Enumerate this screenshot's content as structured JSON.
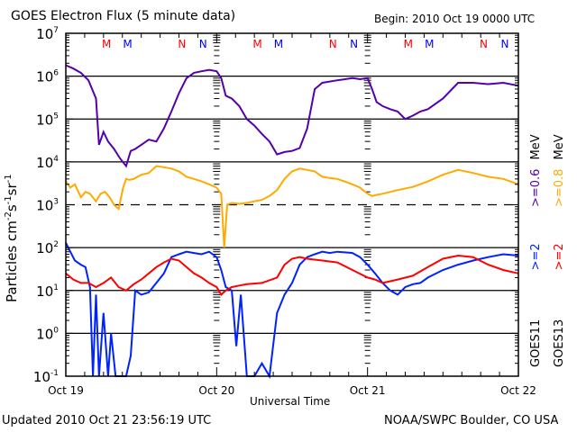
{
  "chart_data": {
    "type": "line",
    "title": "GOES Electron Flux (5 minute data)",
    "begin_label": "Begin: 2010 Oct 19 0000 UTC",
    "xlabel": "Universal Time",
    "ylabel_main": "Particles cm",
    "ylabel_sup1": "-2",
    "ylabel_s": "s",
    "ylabel_sup2": "-1",
    "ylabel_sr": "sr",
    "ylabel_sup3": "-1",
    "yscale": "log",
    "ylim": [
      0.1,
      10000000
    ],
    "y_ticks": [
      {
        "base": "10",
        "exp": "7",
        "value": 10000000
      },
      {
        "base": "10",
        "exp": "6",
        "value": 1000000
      },
      {
        "base": "10",
        "exp": "5",
        "value": 100000
      },
      {
        "base": "10",
        "exp": "4",
        "value": 10000
      },
      {
        "base": "10",
        "exp": "3",
        "value": 1000
      },
      {
        "base": "10",
        "exp": "2",
        "value": 100
      },
      {
        "base": "10",
        "exp": "1",
        "value": 10
      },
      {
        "base": "10",
        "exp": "0",
        "value": 1
      },
      {
        "base": "10",
        "exp": "-1",
        "value": 0.1
      }
    ],
    "x_unit": "days since Oct 19 0000 UTC",
    "xlim": [
      0,
      3
    ],
    "x_ticks": [
      {
        "label": "Oct 19",
        "value": 0
      },
      {
        "label": "Oct 20",
        "value": 1
      },
      {
        "label": "Oct 21",
        "value": 2
      },
      {
        "label": "Oct 22",
        "value": 3
      }
    ],
    "dashed_gridline_value": 1000,
    "solid_gridline_values": [
      1000000,
      100000,
      10000,
      100,
      10,
      1
    ],
    "midnight_noon_markers": [
      {
        "label": "M",
        "x": 0.27,
        "color": "#ff0000"
      },
      {
        "label": "M",
        "x": 0.41,
        "color": "#0000ff"
      },
      {
        "label": "N",
        "x": 0.77,
        "color": "#ff0000"
      },
      {
        "label": "N",
        "x": 0.91,
        "color": "#0000ff"
      },
      {
        "label": "M",
        "x": 1.27,
        "color": "#ff0000"
      },
      {
        "label": "M",
        "x": 1.41,
        "color": "#0000ff"
      },
      {
        "label": "N",
        "x": 1.77,
        "color": "#ff0000"
      },
      {
        "label": "N",
        "x": 1.91,
        "color": "#0000ff"
      },
      {
        "label": "M",
        "x": 2.27,
        "color": "#ff0000"
      },
      {
        "label": "M",
        "x": 2.41,
        "color": "#0000ff"
      },
      {
        "label": "N",
        "x": 2.77,
        "color": "#ff0000"
      },
      {
        "label": "N",
        "x": 2.91,
        "color": "#0000ff"
      }
    ],
    "legend": {
      "placement": "right",
      "sat_a": "GOES11",
      "sat_b": "GOES13",
      "e1_a": ">=2",
      "e1_b": ">=2",
      "e2_a": ">=0.6",
      "e2_b": ">=0.8",
      "unit_a": "MeV",
      "unit_b": "MeV"
    },
    "series": [
      {
        "name": "GOES11 >=0.6 MeV",
        "color": "#5500aa",
        "x": [
          0,
          0.05,
          0.1,
          0.15,
          0.2,
          0.22,
          0.25,
          0.28,
          0.32,
          0.36,
          0.4,
          0.43,
          0.46,
          0.5,
          0.55,
          0.6,
          0.65,
          0.7,
          0.75,
          0.8,
          0.85,
          0.9,
          0.95,
          1.0,
          1.03,
          1.06,
          1.1,
          1.15,
          1.2,
          1.25,
          1.3,
          1.35,
          1.4,
          1.45,
          1.5,
          1.55,
          1.6,
          1.65,
          1.7,
          1.8,
          1.9,
          1.95,
          2.0,
          2.03,
          2.06,
          2.1,
          2.15,
          2.2,
          2.25,
          2.3,
          2.35,
          2.4,
          2.5,
          2.6,
          2.7,
          2.8,
          2.9,
          3.0
        ],
        "values": [
          1800000,
          1500000,
          1200000,
          800000,
          300000,
          25000,
          50000,
          30000,
          20000,
          12000,
          8000,
          18000,
          20000,
          25000,
          33000,
          30000,
          60000,
          150000,
          400000,
          900000,
          1200000,
          1300000,
          1400000,
          1300000,
          900000,
          350000,
          300000,
          200000,
          100000,
          70000,
          45000,
          30000,
          15000,
          17000,
          18000,
          21000,
          60000,
          500000,
          700000,
          800000,
          900000,
          850000,
          900000,
          500000,
          250000,
          200000,
          170000,
          150000,
          100000,
          120000,
          150000,
          170000,
          300000,
          700000,
          700000,
          650000,
          700000,
          600000
        ]
      },
      {
        "name": "GOES13 >=0.8 MeV",
        "color": "#ffaa00",
        "x": [
          0,
          0.03,
          0.06,
          0.1,
          0.13,
          0.16,
          0.2,
          0.23,
          0.26,
          0.29,
          0.32,
          0.35,
          0.38,
          0.4,
          0.42,
          0.45,
          0.5,
          0.55,
          0.6,
          0.65,
          0.7,
          0.75,
          0.8,
          0.85,
          0.9,
          0.95,
          1.0,
          1.03,
          1.05,
          1.07,
          1.1,
          1.15,
          1.2,
          1.25,
          1.3,
          1.35,
          1.4,
          1.45,
          1.5,
          1.55,
          1.6,
          1.65,
          1.7,
          1.75,
          1.8,
          1.9,
          1.95,
          2.0,
          2.03,
          2.06,
          2.1,
          2.2,
          2.3,
          2.4,
          2.5,
          2.6,
          2.7,
          2.8,
          2.9,
          3.0
        ],
        "values": [
          3500,
          2500,
          3000,
          1500,
          2000,
          1800,
          1200,
          1800,
          2000,
          1500,
          1000,
          800,
          2500,
          4000,
          3800,
          4000,
          5000,
          5500,
          8000,
          7500,
          7000,
          6000,
          4500,
          4000,
          3500,
          3000,
          2500,
          1800,
          100,
          1000,
          1100,
          1050,
          1100,
          1200,
          1300,
          1600,
          2200,
          4000,
          6000,
          7000,
          6500,
          6000,
          4500,
          4200,
          4000,
          3000,
          2500,
          1800,
          1600,
          1700,
          1800,
          2200,
          2600,
          3500,
          5000,
          6500,
          5500,
          4500,
          4000,
          3000
        ]
      },
      {
        "name": "GOES11 >=2 MeV",
        "color": "#0022ff",
        "x": [
          0,
          0.03,
          0.06,
          0.1,
          0.13,
          0.16,
          0.18,
          0.2,
          0.22,
          0.25,
          0.28,
          0.3,
          0.33,
          0.36,
          0.4,
          0.43,
          0.46,
          0.5,
          0.55,
          0.6,
          0.65,
          0.7,
          0.75,
          0.8,
          0.85,
          0.9,
          0.95,
          1.0,
          1.03,
          1.06,
          1.1,
          1.13,
          1.16,
          1.2,
          1.25,
          1.3,
          1.35,
          1.4,
          1.45,
          1.5,
          1.55,
          1.6,
          1.65,
          1.7,
          1.75,
          1.8,
          1.9,
          1.95,
          2.0,
          2.05,
          2.1,
          2.15,
          2.2,
          2.25,
          2.3,
          2.35,
          2.4,
          2.5,
          2.6,
          2.7,
          2.8,
          2.9,
          3.0
        ],
        "values": [
          130,
          80,
          50,
          40,
          35,
          12,
          0.1,
          8,
          0.1,
          3,
          0.1,
          1,
          0.1,
          0.1,
          0.1,
          0.3,
          10,
          8,
          9,
          15,
          25,
          60,
          70,
          80,
          75,
          70,
          80,
          60,
          30,
          12,
          10,
          0.5,
          8,
          0.1,
          0.1,
          0.2,
          0.1,
          3,
          8,
          15,
          40,
          60,
          70,
          80,
          75,
          80,
          75,
          60,
          40,
          25,
          15,
          10,
          8,
          12,
          14,
          15,
          20,
          30,
          40,
          50,
          60,
          70,
          65
        ]
      },
      {
        "name": "GOES13 >=2 MeV",
        "color": "#ff0000",
        "x": [
          0,
          0.05,
          0.1,
          0.15,
          0.2,
          0.25,
          0.3,
          0.35,
          0.4,
          0.45,
          0.5,
          0.55,
          0.6,
          0.65,
          0.7,
          0.75,
          0.8,
          0.85,
          0.9,
          0.95,
          1.0,
          1.03,
          1.06,
          1.1,
          1.15,
          1.2,
          1.3,
          1.4,
          1.45,
          1.5,
          1.55,
          1.6,
          1.7,
          1.8,
          1.9,
          2.0,
          2.05,
          2.1,
          2.2,
          2.3,
          2.4,
          2.5,
          2.6,
          2.7,
          2.8,
          2.9,
          3.0
        ],
        "values": [
          25,
          18,
          15,
          15,
          12,
          15,
          20,
          12,
          10,
          14,
          18,
          25,
          35,
          45,
          55,
          50,
          35,
          25,
          20,
          15,
          12,
          8,
          10,
          12,
          13,
          14,
          15,
          20,
          40,
          55,
          60,
          55,
          50,
          45,
          30,
          20,
          18,
          15,
          18,
          22,
          35,
          55,
          65,
          60,
          40,
          30,
          25
        ]
      }
    ]
  },
  "footer": {
    "updated": "Updated 2010 Oct 21 23:56:19 UTC",
    "credit": "NOAA/SWPC Boulder, CO USA"
  }
}
